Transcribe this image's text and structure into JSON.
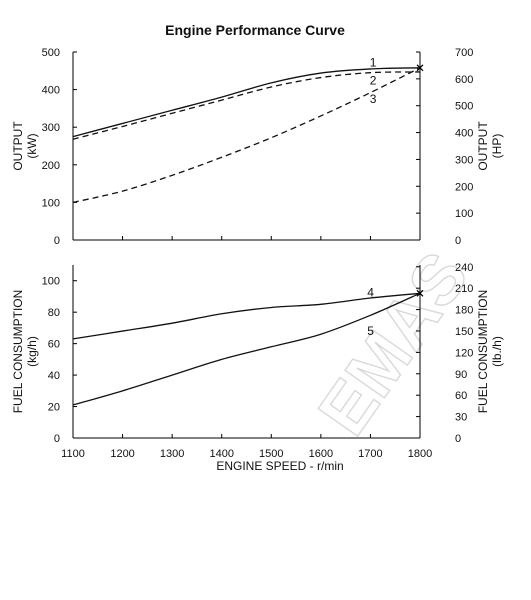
{
  "chart_data": [
    {
      "type": "line",
      "title": "Engine Performance Curve",
      "xlim": [
        1100,
        1800
      ],
      "ylim": [
        0,
        500
      ],
      "ylabel": [
        "OUTPUT",
        "(kW)"
      ],
      "yticks": [
        0,
        100,
        200,
        300,
        400,
        500
      ],
      "y2label": [
        "OUTPUT",
        "(HP)"
      ],
      "y2ticks": [
        0,
        100,
        200,
        300,
        400,
        500,
        600,
        700
      ],
      "y2lim": [
        0,
        700
      ],
      "grid": false,
      "series": [
        {
          "name": "1",
          "style": "solid",
          "x": [
            1100,
            1200,
            1300,
            1400,
            1500,
            1600,
            1700,
            1800
          ],
          "y": [
            275,
            310,
            345,
            380,
            418,
            444,
            455,
            458
          ]
        },
        {
          "name": "2",
          "style": "dashed",
          "x": [
            1100,
            1200,
            1300,
            1400,
            1500,
            1600,
            1700,
            1800
          ],
          "y": [
            268,
            302,
            337,
            372,
            407,
            432,
            445,
            447
          ]
        },
        {
          "name": "3",
          "style": "dashed",
          "x": [
            1100,
            1200,
            1300,
            1400,
            1500,
            1600,
            1700,
            1800
          ],
          "y": [
            100,
            130,
            172,
            220,
            272,
            330,
            392,
            458
          ]
        }
      ],
      "endpoint_marker": {
        "x": 1800,
        "y": 458
      }
    },
    {
      "type": "line",
      "xlim": [
        1100,
        1800
      ],
      "ylim": [
        0,
        110
      ],
      "ylabel": [
        "FUEL CONSUMPTION",
        "(kg/h)"
      ],
      "yticks": [
        0,
        20,
        40,
        60,
        80,
        100
      ],
      "y2label": [
        "FUEL CONSUMPTION",
        "(lb./h)"
      ],
      "y2ticks": [
        0,
        30,
        60,
        90,
        120,
        150,
        180,
        210,
        240
      ],
      "y2lim": [
        0,
        242.5
      ],
      "xlabel": "ENGINE SPEED - r/min",
      "xticks": [
        1100,
        1200,
        1300,
        1400,
        1500,
        1600,
        1700,
        1800
      ],
      "grid": false,
      "series": [
        {
          "name": "4",
          "style": "solid",
          "x": [
            1100,
            1200,
            1300,
            1400,
            1500,
            1600,
            1700,
            1800
          ],
          "y": [
            63,
            68,
            73,
            79,
            83,
            85,
            89,
            92
          ]
        },
        {
          "name": "5",
          "style": "solid",
          "x": [
            1100,
            1200,
            1300,
            1400,
            1500,
            1600,
            1700,
            1800
          ],
          "y": [
            21,
            30,
            40,
            50,
            58,
            66,
            78,
            92
          ]
        }
      ],
      "endpoint_marker": {
        "x": 1800,
        "y": 92
      }
    }
  ],
  "watermark": [
    "EMAS"
  ]
}
